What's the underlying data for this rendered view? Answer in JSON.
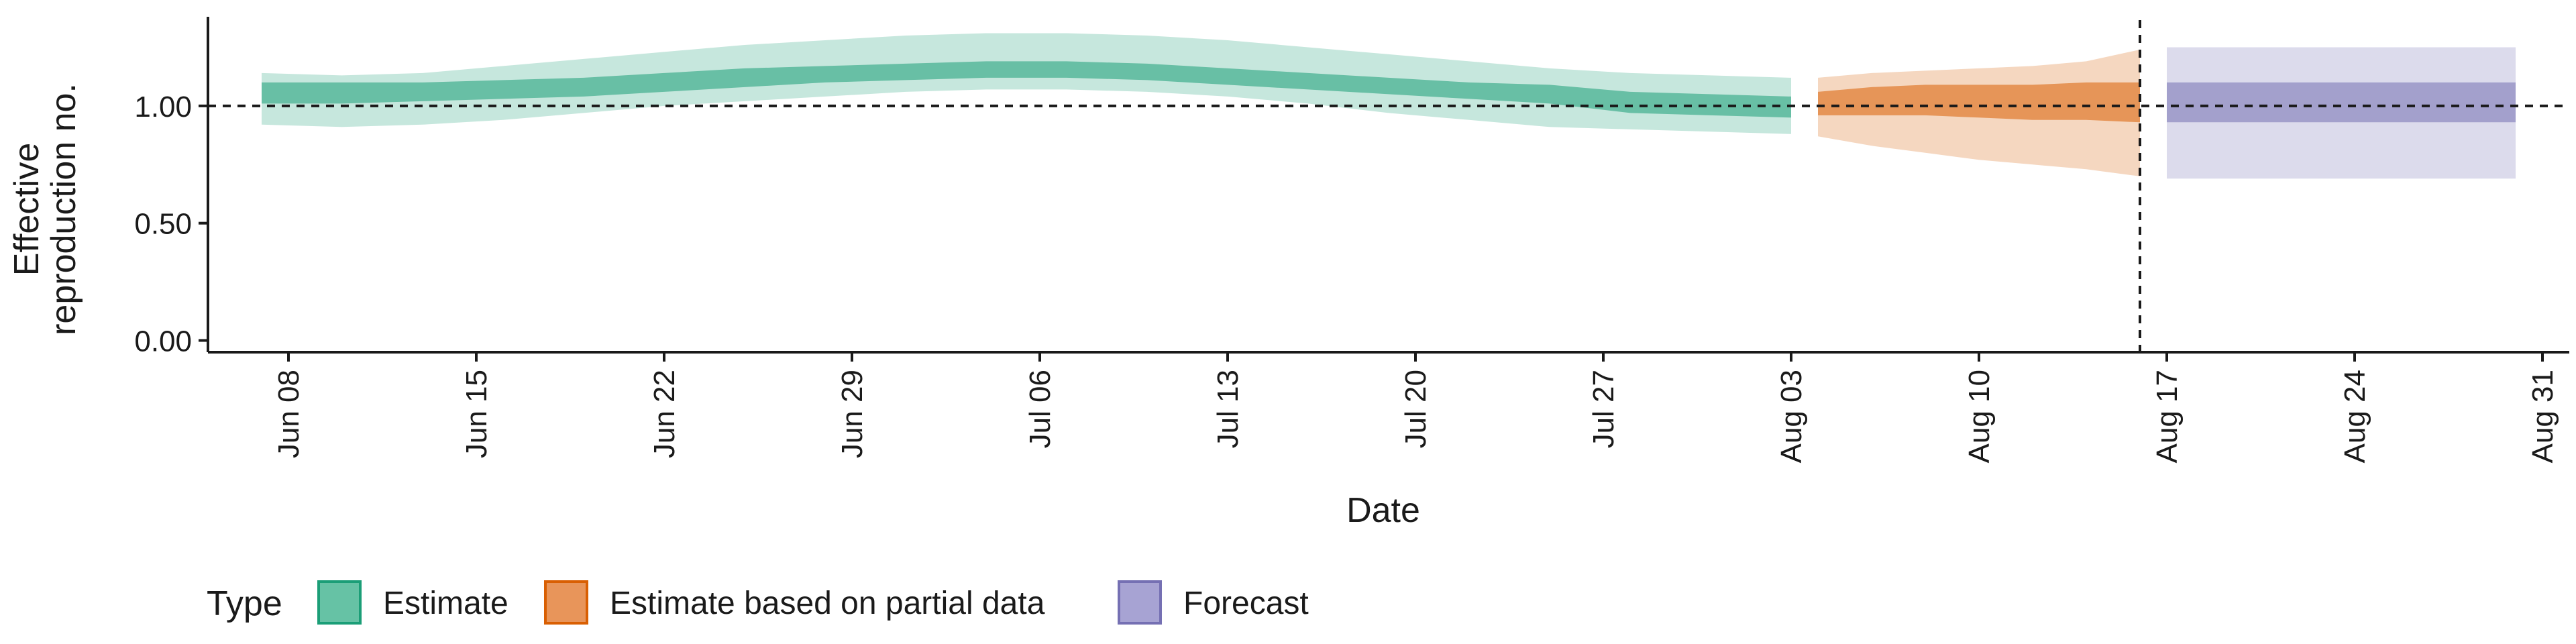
{
  "chart_data": {
    "type": "area",
    "title": "",
    "xlabel": "Date",
    "ylabel": [
      "Effective",
      "reproduction no."
    ],
    "ylim": [
      -0.05,
      1.38
    ],
    "xlim": [
      "2020-06-05",
      "2020-09-01"
    ],
    "x_ticks": [
      {
        "date": "2020-06-08",
        "label": "Jun 08"
      },
      {
        "date": "2020-06-15",
        "label": "Jun 15"
      },
      {
        "date": "2020-06-22",
        "label": "Jun 22"
      },
      {
        "date": "2020-06-29",
        "label": "Jun 29"
      },
      {
        "date": "2020-07-06",
        "label": "Jul 06"
      },
      {
        "date": "2020-07-13",
        "label": "Jul 13"
      },
      {
        "date": "2020-07-20",
        "label": "Jul 20"
      },
      {
        "date": "2020-07-27",
        "label": "Jul 27"
      },
      {
        "date": "2020-08-03",
        "label": "Aug 03"
      },
      {
        "date": "2020-08-10",
        "label": "Aug 10"
      },
      {
        "date": "2020-08-17",
        "label": "Aug 17"
      },
      {
        "date": "2020-08-24",
        "label": "Aug 24"
      },
      {
        "date": "2020-08-31",
        "label": "Aug 31"
      }
    ],
    "y_ticks": [
      {
        "value": 0,
        "label": "0.00"
      },
      {
        "value": 0.5,
        "label": "0.50"
      },
      {
        "value": 1,
        "label": "1.00"
      }
    ],
    "reference_lines": {
      "h": 1.0,
      "v": "2020-08-16"
    },
    "grid": false,
    "legend": {
      "placement": "bottom-left",
      "title": "Type",
      "items": [
        {
          "label": "Estimate",
          "fill": "#66c2a5",
          "stroke": "#1b9e77"
        },
        {
          "label": "Estimate based on partial data",
          "fill": "#e8955a",
          "stroke": "#d95f02"
        },
        {
          "label": "Forecast",
          "fill": "#a7a3d3",
          "stroke": "#7570b3"
        }
      ]
    },
    "series": [
      {
        "type_label": "Estimate",
        "color": "#1b9e77",
        "x": [
          "2020-06-07",
          "2020-06-10",
          "2020-06-13",
          "2020-06-16",
          "2020-06-19",
          "2020-06-22",
          "2020-06-25",
          "2020-06-28",
          "2020-07-01",
          "2020-07-04",
          "2020-07-07",
          "2020-07-10",
          "2020-07-13",
          "2020-07-16",
          "2020-07-19",
          "2020-07-22",
          "2020-07-25",
          "2020-07-28",
          "2020-07-31",
          "2020-08-03"
        ],
        "lo90": [
          0.92,
          0.91,
          0.92,
          0.94,
          0.97,
          1.0,
          1.02,
          1.04,
          1.06,
          1.07,
          1.07,
          1.06,
          1.04,
          1.01,
          0.97,
          0.94,
          0.91,
          0.9,
          0.89,
          0.88
        ],
        "lo50": [
          1.01,
          1.01,
          1.02,
          1.03,
          1.04,
          1.06,
          1.08,
          1.1,
          1.11,
          1.12,
          1.12,
          1.11,
          1.09,
          1.07,
          1.05,
          1.03,
          1.01,
          0.97,
          0.96,
          0.95
        ],
        "hi50": [
          1.1,
          1.1,
          1.1,
          1.11,
          1.12,
          1.14,
          1.16,
          1.17,
          1.18,
          1.19,
          1.19,
          1.18,
          1.16,
          1.14,
          1.12,
          1.1,
          1.09,
          1.06,
          1.05,
          1.04
        ],
        "hi90": [
          1.14,
          1.13,
          1.14,
          1.17,
          1.2,
          1.23,
          1.26,
          1.28,
          1.3,
          1.31,
          1.31,
          1.3,
          1.28,
          1.25,
          1.22,
          1.19,
          1.16,
          1.14,
          1.13,
          1.12
        ]
      },
      {
        "type_label": "Estimate based on partial data",
        "color": "#d95f02",
        "x": [
          "2020-08-04",
          "2020-08-06",
          "2020-08-08",
          "2020-08-10",
          "2020-08-12",
          "2020-08-14",
          "2020-08-16"
        ],
        "lo90": [
          0.87,
          0.83,
          0.8,
          0.77,
          0.75,
          0.73,
          0.7
        ],
        "lo50": [
          0.96,
          0.96,
          0.96,
          0.95,
          0.94,
          0.94,
          0.93
        ],
        "hi50": [
          1.06,
          1.08,
          1.09,
          1.09,
          1.09,
          1.1,
          1.1
        ],
        "hi90": [
          1.12,
          1.14,
          1.15,
          1.16,
          1.17,
          1.19,
          1.24
        ]
      },
      {
        "type_label": "Forecast",
        "color": "#7570b3",
        "x": [
          "2020-08-17",
          "2020-08-30"
        ],
        "lo90": [
          0.69,
          0.69
        ],
        "lo50": [
          0.93,
          0.93
        ],
        "hi50": [
          1.1,
          1.1
        ],
        "hi90": [
          1.25,
          1.25
        ]
      }
    ]
  }
}
